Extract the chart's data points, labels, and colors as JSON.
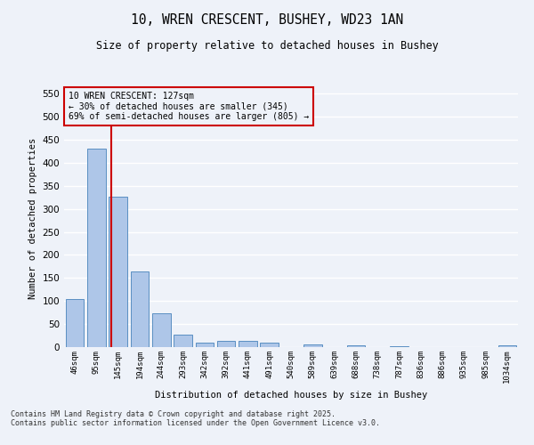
{
  "title1": "10, WREN CRESCENT, BUSHEY, WD23 1AN",
  "title2": "Size of property relative to detached houses in Bushey",
  "xlabel": "Distribution of detached houses by size in Bushey",
  "ylabel": "Number of detached properties",
  "bin_labels": [
    "46sqm",
    "95sqm",
    "145sqm",
    "194sqm",
    "244sqm",
    "293sqm",
    "342sqm",
    "392sqm",
    "441sqm",
    "491sqm",
    "540sqm",
    "589sqm",
    "639sqm",
    "688sqm",
    "738sqm",
    "787sqm",
    "836sqm",
    "886sqm",
    "935sqm",
    "985sqm",
    "1034sqm"
  ],
  "bar_values": [
    105,
    430,
    327,
    165,
    74,
    28,
    10,
    13,
    13,
    9,
    0,
    5,
    0,
    3,
    0,
    1,
    0,
    0,
    0,
    0,
    4
  ],
  "bar_color": "#aec6e8",
  "bar_edge_color": "#5a8fc2",
  "ylim": [
    0,
    560
  ],
  "yticks": [
    0,
    50,
    100,
    150,
    200,
    250,
    300,
    350,
    400,
    450,
    500,
    550
  ],
  "vline_x": 1.68,
  "vline_color": "#cc0000",
  "annotation_title": "10 WREN CRESCENT: 127sqm",
  "annotation_line1": "← 30% of detached houses are smaller (345)",
  "annotation_line2": "69% of semi-detached houses are larger (805) →",
  "annotation_box_color": "#cc0000",
  "footer1": "Contains HM Land Registry data © Crown copyright and database right 2025.",
  "footer2": "Contains public sector information licensed under the Open Government Licence v3.0.",
  "background_color": "#eef2f9",
  "grid_color": "#ffffff"
}
